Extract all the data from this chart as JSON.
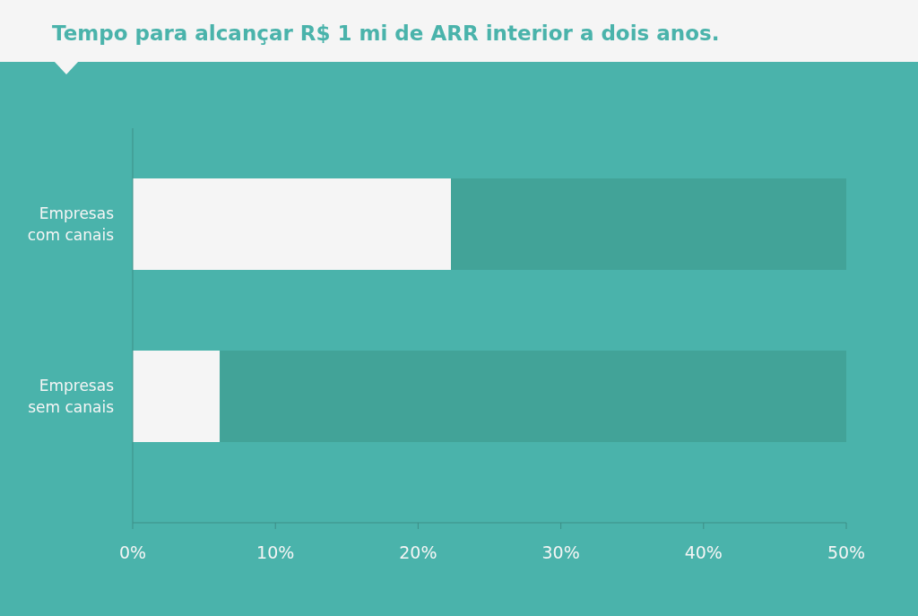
{
  "chart_data": {
    "type": "bar",
    "title": "Tempo para alcançar R$ 1 mi de ARR interior a dois anos.",
    "orientation": "horizontal",
    "stacked": true,
    "categories": [
      "Empresas com canais",
      "Empresas sem canais"
    ],
    "series": [
      {
        "color": "#f5f5f5",
        "values": [
          22.3,
          6.1
        ]
      },
      {
        "color": "#42a398",
        "values": [
          27.7,
          43.9
        ]
      }
    ],
    "xlim": [
      0,
      50
    ],
    "xticks": [
      {
        "value": 0,
        "label": "0%"
      },
      {
        "value": 10,
        "label": "10%"
      },
      {
        "value": 20,
        "label": "20%"
      },
      {
        "value": 30,
        "label": "30%"
      },
      {
        "value": 40,
        "label": "40%"
      },
      {
        "value": 50,
        "label": "50%"
      }
    ]
  }
}
